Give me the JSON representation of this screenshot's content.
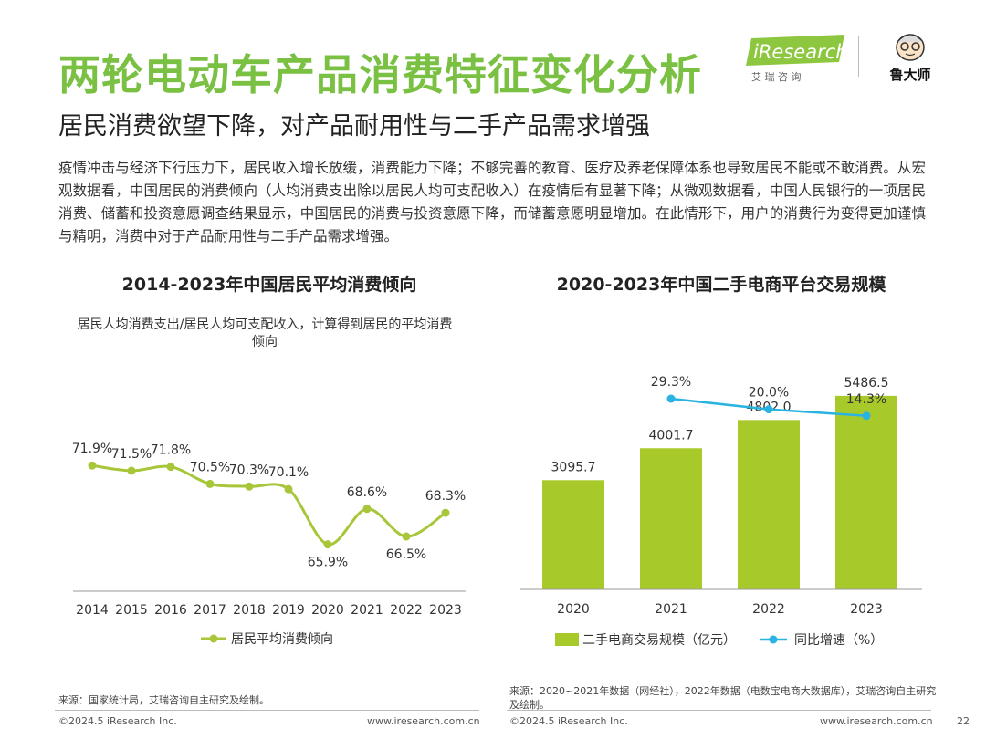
{
  "header": {
    "title": "两轮电动车产品消费特征变化分析",
    "subtitle": "居民消费欲望下降，对产品耐用性与二手产品需求增强",
    "brand_iresearch": "iResearch",
    "brand_iresearch_cn": "艾 瑞 咨 询",
    "brand_ludashi": "鲁大师"
  },
  "body_text": "疫情冲击与经济下行压力下，居民收入增长放缓，消费能力下降；不够完善的教育、医疗及养老保障体系也导致居民不能或不敢消费。从宏观数据看，中国居民的消费倾向（人均消费支出除以居民人均可支配收入）在疫情后有显著下降；从微观数据看，中国人民银行的一项居民消费、储蓄和投资意愿调查结果显示，中国居民的消费与投资意愿下降，而储蓄意愿明显增加。在此情形下，用户的消费行为变得更加谨慎与精明，消费中对于产品耐用性与二手产品需求增强。",
  "left_chart": {
    "title": "2014-2023年中国居民平均消费倾向",
    "note": "居民人均消费支出/居民人均可支配收入，计算得到居民的平均消费倾向"
  },
  "right_chart": {
    "title": "2020-2023年中国二手电商平台交易规模"
  },
  "chart_data": [
    {
      "type": "line",
      "title": "2014-2023年中国居民平均消费倾向",
      "categories": [
        "2014",
        "2015",
        "2016",
        "2017",
        "2018",
        "2019",
        "2020",
        "2021",
        "2022",
        "2023"
      ],
      "series": [
        {
          "name": "居民平均消费倾向",
          "values": [
            71.9,
            71.5,
            71.8,
            70.5,
            70.3,
            70.1,
            65.9,
            68.6,
            66.5,
            68.3
          ]
        }
      ],
      "labels": [
        "71.9%",
        "71.5%",
        "71.8%",
        "70.5%",
        "70.3%",
        "70.1%",
        "65.9%",
        "68.6%",
        "66.5%",
        "68.3%"
      ],
      "ylim": [
        64,
        74
      ],
      "color": "#a8c63a",
      "legend": "bottom"
    },
    {
      "type": "bar",
      "title": "2020-2023年中国二手电商平台交易规模",
      "categories": [
        "2020",
        "2021",
        "2022",
        "2023"
      ],
      "series": [
        {
          "name": "二手电商交易规模（亿元）",
          "values": [
            3095.7,
            4001.7,
            4802.0,
            5486.5
          ],
          "labels": [
            "3095.7",
            "4001.7",
            "4802.0",
            "5486.5"
          ],
          "color": "#a8c92a"
        },
        {
          "name": "同比增速（%）",
          "values": [
            null,
            29.3,
            20.0,
            14.3
          ],
          "labels": [
            "",
            "29.3%",
            "20.0%",
            "14.3%"
          ],
          "color": "#29b3e0"
        }
      ],
      "ylim": [
        0,
        6000
      ],
      "legend": "bottom"
    }
  ],
  "sources": {
    "left": "来源：国家统计局，艾瑞咨询自主研究及绘制。",
    "right": "来源：2020~2021年数据（网经社），2022年数据（电数宝电商大数据库），艾瑞咨询自主研究及绘制。"
  },
  "footer": {
    "copyright_left": "©2024.5 iResearch Inc.",
    "url_left": "www.iresearch.com.cn",
    "copyright_right": "©2024.5 iResearch Inc.",
    "url_right": "www.iresearch.com.cn",
    "page_number": "22"
  }
}
